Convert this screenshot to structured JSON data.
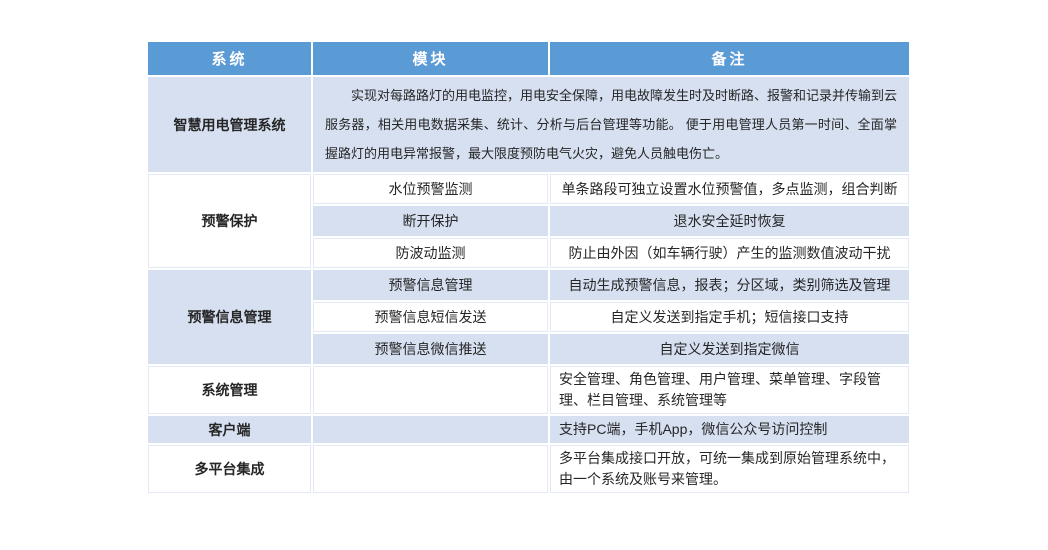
{
  "colors": {
    "header_bg": "#5B9BD5",
    "header_text": "#FFFFFF",
    "band_bg": "#D6E0F1",
    "plain_bg": "#FFFFFF",
    "body_text": "#262626",
    "page_bg": "#FFFFFF"
  },
  "table": {
    "headers": [
      "系统",
      "模块",
      "备注"
    ],
    "rows": [
      {
        "system": "智慧用电管理系统",
        "note": "实现对每路路灯的用电监控，用电安全保障，用电故障发生时及时断路、报警和记录并传输到云服务器，相关用电数据采集、统计、分析与后台管理等功能。 便于用电管理人员第一时间、全面掌握路灯的用电异常报警，最大限度预防电气火灾，避免人员触电伤亡。"
      },
      {
        "system": "预警保护",
        "modules": [
          {
            "module": "水位预警监测",
            "note": "单条路段可独立设置水位预警值，多点监测，组合判断"
          },
          {
            "module": "断开保护",
            "note": "退水安全延时恢复"
          },
          {
            "module": "防波动监测",
            "note": "防止由外因（如车辆行驶）产生的监测数值波动干扰"
          }
        ]
      },
      {
        "system": "预警信息管理",
        "modules": [
          {
            "module": "预警信息管理",
            "note": "自动生成预警信息，报表；分区域，类别筛选及管理"
          },
          {
            "module": "预警信息短信发送",
            "note": "自定义发送到指定手机；短信接口支持"
          },
          {
            "module": "预警信息微信推送",
            "note": "自定义发送到指定微信"
          }
        ]
      },
      {
        "system": "系统管理",
        "module": "",
        "note": "安全管理、角色管理、用户管理、菜单管理、字段管理、栏目管理、系统管理等"
      },
      {
        "system": "客户端",
        "module": "",
        "note": "支持PC端，手机App，微信公众号访问控制"
      },
      {
        "system": "多平台集成",
        "module": "",
        "note": "多平台集成接口开放，可统一集成到原始管理系统中，由一个系统及账号来管理。"
      }
    ]
  }
}
